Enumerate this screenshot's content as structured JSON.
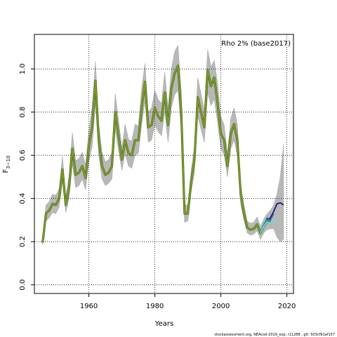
{
  "chart_data": {
    "type": "line",
    "title": "",
    "annotation": "Rho 2% (base2017)",
    "xlabel": "Years",
    "ylabel": "F",
    "ylabel_subscript": "3−10",
    "xlim": [
      1943.5,
      2022
    ],
    "ylim": [
      -0.04,
      1.16
    ],
    "x_ticks": [
      1960,
      1980,
      2000,
      2020
    ],
    "y_ticks": [
      0.0,
      0.2,
      0.4,
      0.6,
      0.8,
      1.0
    ],
    "y_tick_labels": [
      "0.0",
      "0.2",
      "0.4",
      "0.6",
      "0.8",
      "1.0"
    ],
    "grid": "dotted at major ticks",
    "footer": "stockassessment.org, NEAcod-2019_exp, r11288 , git: 503cf91af157",
    "colors": {
      "main_line": "#7a9a2a",
      "main_line_dark": "#4e6b1a",
      "band": "#b8b8b8",
      "retro_navy": "#1a1a6e",
      "retro_blue": "#3a5fa0",
      "retro_teal": "#2aa0a0",
      "retro_light": "#7fd0e0"
    },
    "series": [
      {
        "role": "estimate",
        "x": [
          1946,
          1947,
          1948,
          1949,
          1950,
          1951,
          1952,
          1953,
          1954,
          1955,
          1956,
          1957,
          1958,
          1959,
          1960,
          1961,
          1962,
          1963,
          1964,
          1965,
          1966,
          1967,
          1968,
          1969,
          1970,
          1971,
          1972,
          1973,
          1974,
          1975,
          1976,
          1977,
          1978,
          1979,
          1980,
          1981,
          1982,
          1983,
          1984,
          1985,
          1986,
          1987,
          1988,
          1989,
          1990,
          1991,
          1992,
          1993,
          1994,
          1995,
          1996,
          1997,
          1998,
          1999,
          2000,
          2001,
          2002,
          2003,
          2004,
          2005,
          2006,
          2007,
          2008,
          2009,
          2010,
          2011,
          2012,
          2013,
          2014,
          2015
        ],
        "y": [
          0.195,
          0.33,
          0.345,
          0.375,
          0.37,
          0.4,
          0.535,
          0.37,
          0.45,
          0.63,
          0.51,
          0.52,
          0.55,
          0.495,
          0.64,
          0.73,
          0.945,
          0.67,
          0.55,
          0.51,
          0.52,
          0.55,
          0.8,
          0.69,
          0.58,
          0.67,
          0.61,
          0.6,
          0.67,
          0.67,
          0.82,
          0.94,
          0.73,
          0.74,
          0.82,
          0.78,
          0.76,
          0.89,
          0.74,
          0.91,
          0.98,
          1.015,
          0.8,
          0.33,
          0.33,
          0.48,
          0.58,
          0.87,
          0.8,
          0.73,
          0.995,
          0.92,
          0.96,
          0.84,
          0.7,
          0.67,
          0.55,
          0.7,
          0.745,
          0.67,
          0.42,
          0.33,
          0.265,
          0.255,
          0.26,
          0.28,
          0.24,
          0.27,
          0.29,
          0.3
        ],
        "lower": [
          0.185,
          0.295,
          0.31,
          0.335,
          0.33,
          0.36,
          0.48,
          0.335,
          0.4,
          0.56,
          0.45,
          0.46,
          0.49,
          0.44,
          0.57,
          0.64,
          0.84,
          0.6,
          0.49,
          0.46,
          0.47,
          0.49,
          0.72,
          0.62,
          0.53,
          0.61,
          0.55,
          0.54,
          0.6,
          0.61,
          0.74,
          0.85,
          0.66,
          0.67,
          0.74,
          0.71,
          0.69,
          0.8,
          0.66,
          0.82,
          0.88,
          0.9,
          0.71,
          0.29,
          0.295,
          0.43,
          0.52,
          0.78,
          0.72,
          0.66,
          0.89,
          0.83,
          0.86,
          0.75,
          0.63,
          0.6,
          0.5,
          0.63,
          0.67,
          0.6,
          0.375,
          0.3,
          0.24,
          0.23,
          0.235,
          0.25,
          0.21,
          0.24,
          0.255,
          0.26
        ],
        "upper": [
          0.205,
          0.37,
          0.385,
          0.42,
          0.415,
          0.445,
          0.595,
          0.41,
          0.505,
          0.705,
          0.575,
          0.585,
          0.615,
          0.555,
          0.715,
          0.825,
          1.035,
          0.745,
          0.615,
          0.57,
          0.58,
          0.615,
          0.885,
          0.765,
          0.635,
          0.745,
          0.675,
          0.665,
          0.745,
          0.735,
          0.91,
          1.025,
          0.8,
          0.82,
          0.9,
          0.86,
          0.84,
          0.985,
          0.82,
          1.0,
          1.08,
          1.11,
          0.895,
          0.37,
          0.37,
          0.53,
          0.64,
          0.96,
          0.885,
          0.81,
          1.09,
          1.01,
          1.04,
          0.935,
          0.78,
          0.74,
          0.61,
          0.77,
          0.82,
          0.745,
          0.465,
          0.37,
          0.295,
          0.285,
          0.29,
          0.315,
          0.27,
          0.305,
          0.33,
          0.345
        ]
      },
      {
        "role": "band-extension",
        "x": [
          2015,
          2016,
          2017,
          2018,
          2019
        ],
        "lower": [
          0.26,
          0.26,
          0.22,
          0.2,
          0.21
        ],
        "upper": [
          0.345,
          0.37,
          0.42,
          0.5,
          0.65
        ]
      },
      {
        "role": "retro",
        "color_key": "retro_navy",
        "x": [
          2013,
          2014,
          2015,
          2016,
          2017,
          2018,
          2019
        ],
        "y": [
          0.28,
          0.3,
          0.31,
          0.34,
          0.375,
          0.38,
          0.37
        ]
      },
      {
        "role": "retro",
        "color_key": "retro_blue",
        "x": [
          2013,
          2014,
          2015,
          2016
        ],
        "y": [
          0.27,
          0.31,
          0.3,
          0.33
        ]
      },
      {
        "role": "retro",
        "color_key": "retro_teal",
        "x": [
          2012,
          2013,
          2014,
          2015
        ],
        "y": [
          0.245,
          0.28,
          0.3,
          0.29
        ]
      },
      {
        "role": "retro",
        "color_key": "retro_light",
        "x": [
          2012,
          2013,
          2014,
          2015,
          2016,
          2017
        ],
        "y": [
          0.24,
          0.27,
          0.29,
          0.285,
          0.3,
          0.31
        ]
      }
    ]
  }
}
